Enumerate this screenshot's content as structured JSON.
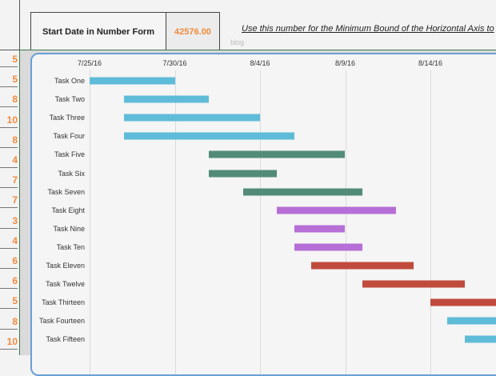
{
  "header": {
    "label": "Start Date in Number Form",
    "value": "42576.00",
    "note": "Use this number for the Minimum Bound of the Horizontal Axis to"
  },
  "row_numbers": [
    "5",
    "5",
    "8",
    "10",
    "8",
    "4",
    "7",
    "7",
    "3",
    "4",
    "6",
    "6",
    "5",
    "8",
    "10"
  ],
  "watermark": "blog",
  "colors": {
    "accent_number": "#f08a3c",
    "chart_border": "#6a9fd6",
    "grid_line": "#3a7a4c"
  },
  "chart_data": {
    "type": "gantt",
    "x_axis": {
      "min": "2016-07-25",
      "tick_interval_days": 5,
      "tick_labels": [
        "7/25/16",
        "7/30/16",
        "8/4/16",
        "8/9/16",
        "8/14/16"
      ]
    },
    "tasks": [
      {
        "name": "Task One",
        "start": "2016-07-25",
        "duration": 5,
        "color": "#5fbcd8"
      },
      {
        "name": "Task Two",
        "start": "2016-07-27",
        "duration": 5,
        "color": "#5fbcd8"
      },
      {
        "name": "Task Three",
        "start": "2016-07-27",
        "duration": 8,
        "color": "#5fbcd8"
      },
      {
        "name": "Task Four",
        "start": "2016-07-27",
        "duration": 10,
        "color": "#5fbcd8"
      },
      {
        "name": "Task Five",
        "start": "2016-08-01",
        "duration": 8,
        "color": "#528c78"
      },
      {
        "name": "Task Six",
        "start": "2016-08-01",
        "duration": 4,
        "color": "#528c78"
      },
      {
        "name": "Task Seven",
        "start": "2016-08-03",
        "duration": 7,
        "color": "#528c78"
      },
      {
        "name": "Task Eight",
        "start": "2016-08-05",
        "duration": 7,
        "color": "#b66fd6"
      },
      {
        "name": "Task Nine",
        "start": "2016-08-06",
        "duration": 3,
        "color": "#b66fd6"
      },
      {
        "name": "Task Ten",
        "start": "2016-08-06",
        "duration": 4,
        "color": "#b66fd6"
      },
      {
        "name": "Task Eleven",
        "start": "2016-08-07",
        "duration": 6,
        "color": "#c04b3c"
      },
      {
        "name": "Task Twelve",
        "start": "2016-08-10",
        "duration": 6,
        "color": "#c04b3c"
      },
      {
        "name": "Task Thirteen",
        "start": "2016-08-14",
        "duration": 5,
        "color": "#c04b3c"
      },
      {
        "name": "Task Fourteen",
        "start": "2016-08-15",
        "duration": 8,
        "color": "#5fbcd8"
      },
      {
        "name": "Task Fifteen",
        "start": "2016-08-16",
        "duration": 10,
        "color": "#5fbcd8"
      }
    ]
  }
}
